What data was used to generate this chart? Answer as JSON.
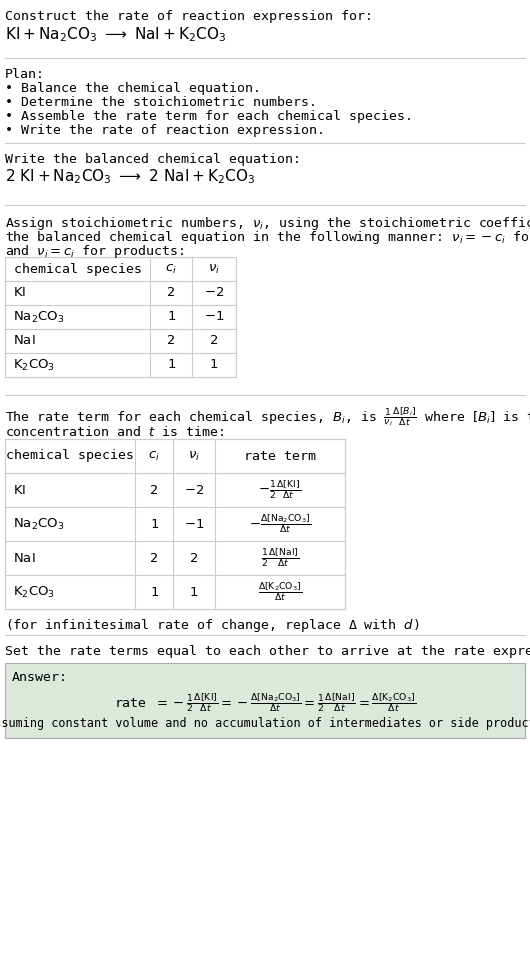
{
  "bg_color": "#ffffff",
  "table_bg": "#ffffff",
  "answer_bg": "#e8f0e8",
  "line_color": "#cccccc",
  "title_text": "Construct the rate of reaction expression for:",
  "plan_title": "Plan:",
  "plan_items": [
    "• Balance the chemical equation.",
    "• Determine the stoichiometric numbers.",
    "• Assemble the rate term for each chemical species.",
    "• Write the rate of reaction expression."
  ],
  "balanced_title": "Write the balanced chemical equation:",
  "stoich_intro_1": "Assign stoichiometric numbers, $\\nu_i$, using the stoichiometric coefficients, $c_i$, from",
  "stoich_intro_2": "the balanced chemical equation in the following manner: $\\nu_i = -c_i$ for reactants",
  "stoich_intro_3": "and $\\nu_i = c_i$ for products:",
  "rate_intro_1": "The rate term for each chemical species, $B_i$, is $\\frac{1}{\\nu_i}\\frac{\\Delta[B_i]}{\\Delta t}$ where $[B_i]$ is the amount",
  "rate_intro_2": "concentration and $t$ is time:",
  "infinitesimal_note": "(for infinitesimal rate of change, replace Δ with $d$)",
  "set_equal_text": "Set the rate terms equal to each other to arrive at the rate expression:",
  "answer_label": "Answer:",
  "answer_note": "(assuming constant volume and no accumulation of intermediates or side products)"
}
